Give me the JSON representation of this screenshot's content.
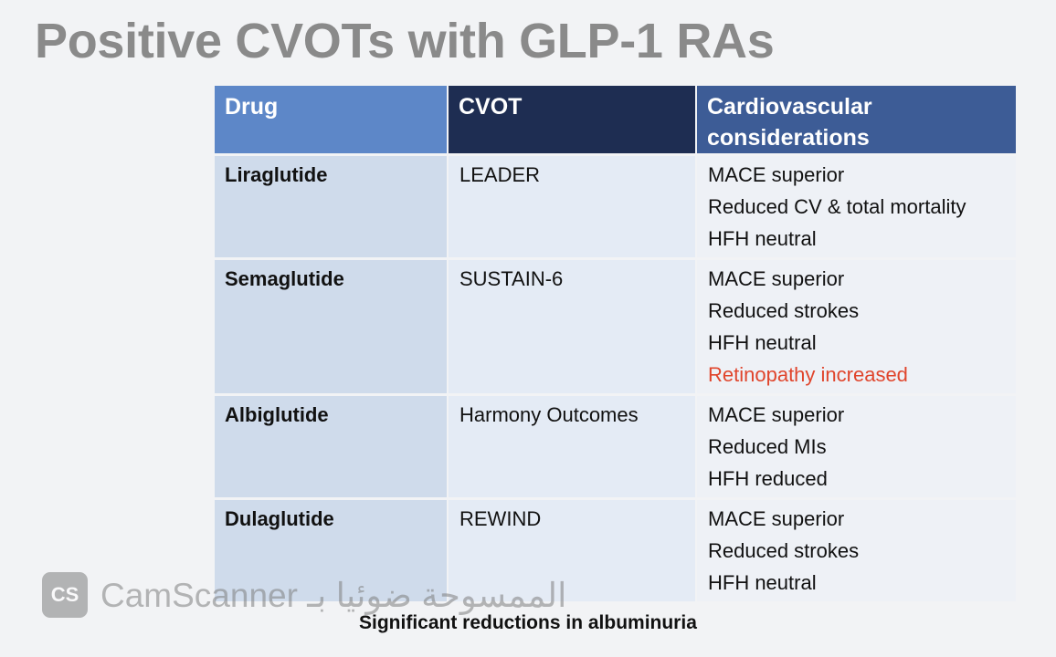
{
  "title": "Positive CVOTs with GLP-1 RAs",
  "table": {
    "headers": [
      "Drug",
      "CVOT",
      "Cardiovascular considerations"
    ],
    "rows": [
      {
        "drug": "Liraglutide",
        "cvot": "LEADER",
        "considerations": [
          "MACE superior",
          "Reduced CV & total mortality",
          "HFH neutral"
        ]
      },
      {
        "drug": "Semaglutide",
        "cvot": "SUSTAIN-6",
        "considerations": [
          "MACE superior",
          "Reduced strokes",
          "HFH neutral",
          "Retinopathy increased"
        ]
      },
      {
        "drug": "Albiglutide",
        "cvot": "Harmony Outcomes",
        "considerations": [
          "MACE superior",
          "Reduced MIs",
          "HFH reduced"
        ]
      },
      {
        "drug": "Dulaglutide",
        "cvot": "REWIND",
        "considerations": [
          "MACE superior",
          "Reduced strokes",
          "HFH neutral"
        ]
      }
    ]
  },
  "footer": "Significant reductions in albuminuria",
  "watermark": {
    "logo_text": "CS",
    "text": "CamScanner الممسوحة ضوئيا بـ"
  },
  "colors": {
    "header_drug": "#5d87c8",
    "header_cvot": "#1e2d52",
    "header_cv": "#3d5c96",
    "highlight_red": "#e0452c"
  }
}
